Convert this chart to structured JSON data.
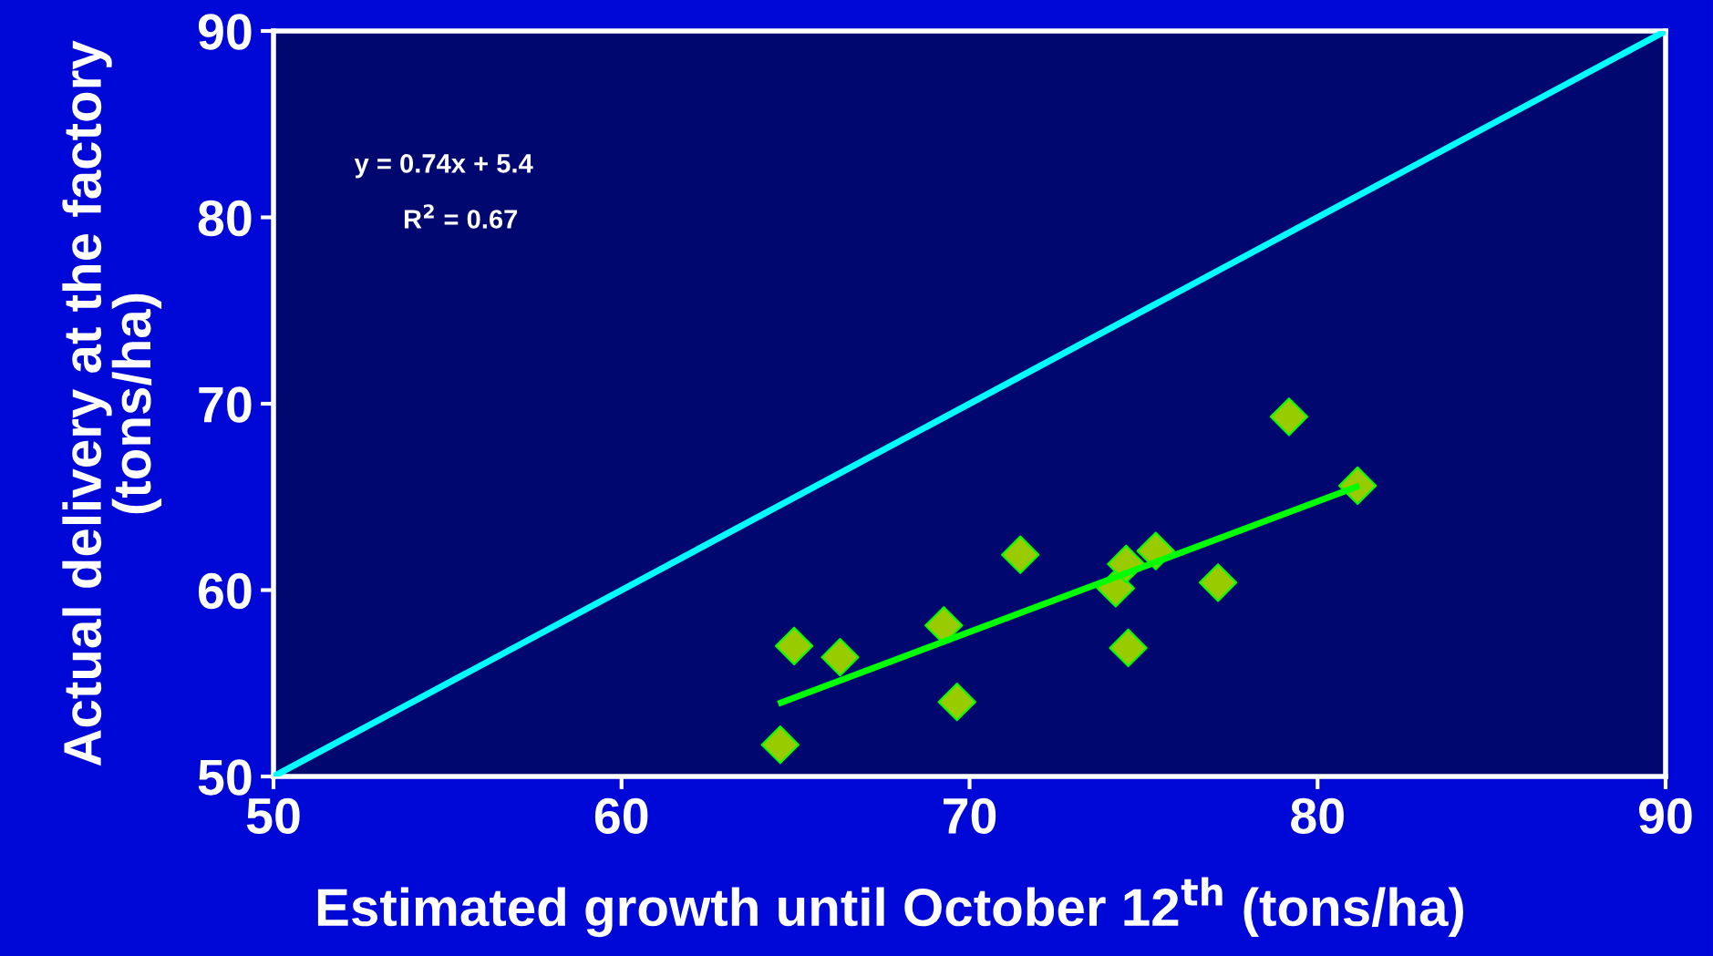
{
  "chart_data": {
    "type": "scatter",
    "xlabel": "Estimated growth until October 12$^{th}$ (tons/ha)",
    "ylabel": "Actual delivery at the factory\n(tons/ha)",
    "xlim": [
      50,
      90
    ],
    "ylim": [
      50,
      90
    ],
    "xticks": [
      50,
      60,
      70,
      80,
      90
    ],
    "yticks": [
      50,
      60,
      70,
      80,
      90
    ],
    "grid": false,
    "marker": "diamond",
    "annotations": [
      "y = 0.74x + 5.4",
      "R$^{2}$ = 0.67"
    ],
    "series": [
      {
        "type": "line",
        "color": "#00ffff",
        "x": [
          50,
          90
        ],
        "values": [
          50,
          90
        ],
        "marker": "none"
      },
      {
        "type": "line",
        "color": "#00ff00",
        "x": [
          64.5,
          81.2
        ],
        "values": [
          53.9,
          65.6
        ],
        "marker": "none"
      },
      {
        "color": "#99cc00",
        "x": [
          64.56,
          64.96,
          66.28,
          69.26,
          69.64,
          71.46,
          74.2,
          74.5,
          74.56,
          75.35,
          77.14,
          79.18,
          81.15
        ],
        "values": [
          51.7,
          57.0,
          56.4,
          58.1,
          54.0,
          61.9,
          60.1,
          61.4,
          56.9,
          62.1,
          60.4,
          69.3,
          65.6
        ]
      }
    ]
  }
}
